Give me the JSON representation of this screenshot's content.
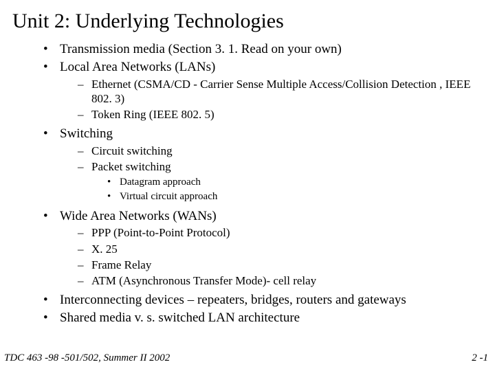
{
  "title": "Unit 2: Underlying Technologies",
  "b1": "Transmission media (Section 3. 1. Read on your own)",
  "b2": "Local Area Networks (LANs)",
  "b2a": "Ethernet (CSMA/CD - Carrier Sense Multiple Access/Collision Detection , IEEE 802. 3)",
  "b2b": "Token Ring (IEEE 802. 5)",
  "b3": "Switching",
  "b3a": "Circuit switching",
  "b3b": "Packet switching",
  "b3b1": "Datagram approach",
  "b3b2": "Virtual circuit approach",
  "b4": "Wide Area Networks (WANs)",
  "b4a": "PPP (Point-to-Point Protocol)",
  "b4b": "X. 25",
  "b4c": "Frame Relay",
  "b4d": "ATM (Asynchronous Transfer Mode)- cell relay",
  "b5": "Interconnecting devices – repeaters, bridges, routers and gateways",
  "b6": "Shared media v. s. switched LAN architecture",
  "footer_left": "TDC 463 -98 -501/502, Summer II 2002",
  "footer_right": "2 -1",
  "colors": {
    "text": "#000000",
    "background": "#ffffff"
  },
  "fonts": {
    "family": "Times New Roman",
    "title_size_pt": 30,
    "l1_size_pt": 19,
    "l2_size_pt": 17,
    "l3_size_pt": 15,
    "footer_size_pt": 15
  }
}
